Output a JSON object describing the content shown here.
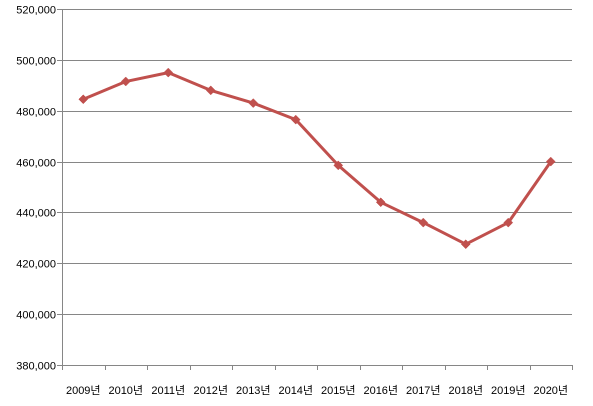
{
  "chart_data": {
    "type": "line",
    "categories": [
      "2009년",
      "2010년",
      "2011년",
      "2012년",
      "2013년",
      "2014년",
      "2015년",
      "2016년",
      "2017년",
      "2018년",
      "2019년",
      "2020년"
    ],
    "series": [
      {
        "values": [
          484500,
          491500,
          495000,
          488000,
          483000,
          476500,
          458500,
          444000,
          436000,
          427500,
          436000,
          460000
        ],
        "color": "#C0504D",
        "marker": "diamond"
      }
    ],
    "ylim": [
      380000,
      520000
    ],
    "ytick_step": 20000,
    "yticks": [
      "380,000",
      "400,000",
      "420,000",
      "440,000",
      "460,000",
      "480,000",
      "500,000",
      "520,000"
    ],
    "grid": true,
    "legend": "none",
    "gridline_color": "#868686",
    "axis_color": "#868686"
  }
}
